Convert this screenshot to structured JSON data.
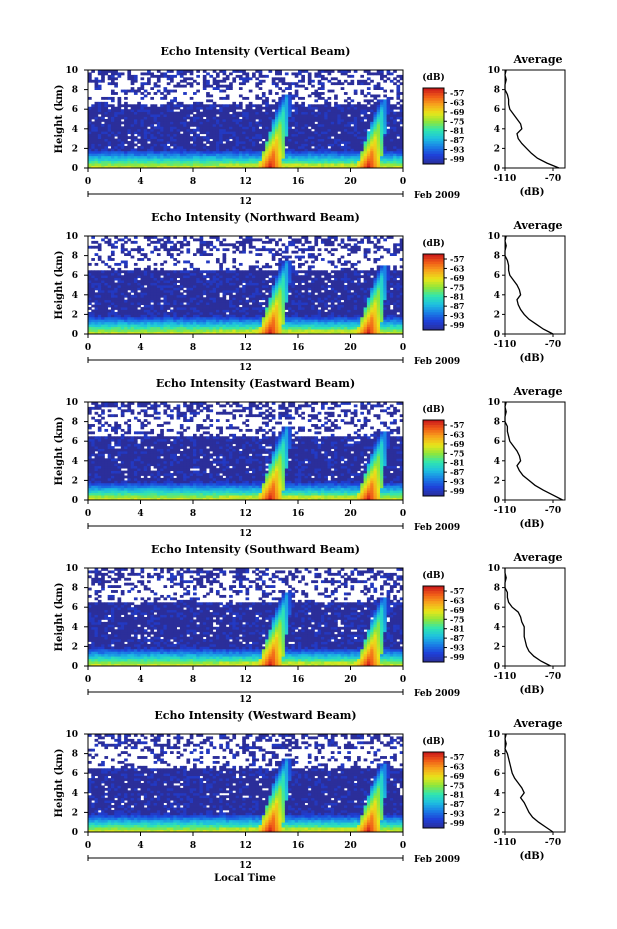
{
  "figure": {
    "month_label": "Feb 2009",
    "xlabel": "Local Time",
    "ylabel": "Height (km)",
    "colorbar_label": "(dB)",
    "avg_title": "Average",
    "avg_xlabel": "(dB)"
  },
  "colors": {
    "background_missing": "#ffffff",
    "low_echo": "#2b2e9a",
    "colormap": [
      "#2b2e9a",
      "#1e3fd8",
      "#1a7de6",
      "#1ec0e0",
      "#30e6b0",
      "#8ee63c",
      "#e8e61a",
      "#f7a61c",
      "#f05a18",
      "#c8141a"
    ]
  },
  "chart_data": [
    {
      "type": "heatmap",
      "title": "Echo Intensity (Vertical Beam)",
      "xlabel": "",
      "ylabel": "Height (km)",
      "x_range_hours": [
        0,
        24
      ],
      "x_ticks": [
        "0",
        "4",
        "8",
        "12",
        "16",
        "20",
        "0"
      ],
      "ylim_km": [
        0,
        10
      ],
      "y_ticks": [
        "0",
        "2",
        "4",
        "6",
        "8",
        "10"
      ],
      "day_marker": "12",
      "colorbar_ticks": [
        "-57",
        "-63",
        "-69",
        "-75",
        "-81",
        "-87",
        "-93",
        "-99"
      ],
      "events": [
        {
          "time_h": 15.2,
          "peak_km": 7.5,
          "strength": "strong"
        },
        {
          "time_h": 22.6,
          "peak_km": 7.0,
          "strength": "strong"
        }
      ],
      "average_profile": {
        "xlim_db": [
          -110,
          -60
        ],
        "x_ticks": [
          "-110",
          "-70"
        ],
        "height_km": [
          0,
          0.5,
          1,
          1.5,
          2,
          2.5,
          3,
          3.5,
          4,
          4.5,
          5,
          5.5,
          6,
          6.5,
          7,
          7.5,
          8,
          8.5,
          9,
          9.5,
          10
        ],
        "db": [
          -65,
          -75,
          -83,
          -88,
          -92,
          -96,
          -99,
          -100,
          -96,
          -97,
          -100,
          -103,
          -106,
          -107,
          -107,
          -108,
          -110,
          -110,
          -109,
          -110,
          -109
        ]
      }
    },
    {
      "type": "heatmap",
      "title": "Echo Intensity (Northward Beam)",
      "xlabel": "",
      "ylabel": "Height (km)",
      "x_range_hours": [
        0,
        24
      ],
      "x_ticks": [
        "0",
        "4",
        "8",
        "12",
        "16",
        "20",
        "0"
      ],
      "ylim_km": [
        0,
        10
      ],
      "y_ticks": [
        "0",
        "2",
        "4",
        "6",
        "8",
        "10"
      ],
      "day_marker": "12",
      "colorbar_ticks": [
        "-57",
        "-63",
        "-69",
        "-75",
        "-81",
        "-87",
        "-93",
        "-99"
      ],
      "events": [
        {
          "time_h": 15.2,
          "peak_km": 7.5,
          "strength": "strong"
        },
        {
          "time_h": 22.6,
          "peak_km": 7.0,
          "strength": "strong"
        }
      ],
      "average_profile": {
        "xlim_db": [
          -110,
          -60
        ],
        "x_ticks": [
          "-110",
          "-70"
        ],
        "height_km": [
          0,
          0.5,
          1,
          1.5,
          2,
          2.5,
          3,
          3.5,
          4,
          4.5,
          5,
          5.5,
          6,
          6.5,
          7,
          7.5,
          8,
          8.5,
          9,
          9.5,
          10
        ],
        "db": [
          -70,
          -78,
          -84,
          -90,
          -94,
          -97,
          -99,
          -100,
          -97,
          -98,
          -100,
          -103,
          -106,
          -107,
          -107,
          -108,
          -110,
          -110,
          -109,
          -110,
          -109
        ]
      }
    },
    {
      "type": "heatmap",
      "title": "Echo Intensity (Eastward Beam)",
      "xlabel": "",
      "ylabel": "Height (km)",
      "x_range_hours": [
        0,
        24
      ],
      "x_ticks": [
        "0",
        "4",
        "8",
        "12",
        "16",
        "20",
        "0"
      ],
      "ylim_km": [
        0,
        10
      ],
      "y_ticks": [
        "0",
        "2",
        "4",
        "6",
        "8",
        "10"
      ],
      "day_marker": "12",
      "colorbar_ticks": [
        "-57",
        "-63",
        "-69",
        "-75",
        "-81",
        "-87",
        "-93",
        "-99"
      ],
      "events": [
        {
          "time_h": 15.2,
          "peak_km": 7.5,
          "strength": "strong"
        },
        {
          "time_h": 22.6,
          "peak_km": 7.0,
          "strength": "strong"
        }
      ],
      "average_profile": {
        "xlim_db": [
          -110,
          -60
        ],
        "x_ticks": [
          "-110",
          "-70"
        ],
        "height_km": [
          0,
          0.5,
          1,
          1.5,
          2,
          2.5,
          3,
          3.5,
          4,
          4.5,
          5,
          5.5,
          6,
          6.5,
          7,
          7.5,
          8,
          8.5,
          9,
          9.5,
          10
        ],
        "db": [
          -62,
          -70,
          -78,
          -85,
          -90,
          -95,
          -98,
          -100,
          -97,
          -98,
          -100,
          -103,
          -106,
          -107,
          -108,
          -108,
          -110,
          -110,
          -109,
          -110,
          -109
        ]
      }
    },
    {
      "type": "heatmap",
      "title": "Echo Intensity (Southward Beam)",
      "xlabel": "",
      "ylabel": "Height (km)",
      "x_range_hours": [
        0,
        24
      ],
      "x_ticks": [
        "0",
        "4",
        "8",
        "12",
        "16",
        "20",
        "0"
      ],
      "ylim_km": [
        0,
        10
      ],
      "y_ticks": [
        "0",
        "2",
        "4",
        "6",
        "8",
        "10"
      ],
      "day_marker": "12",
      "colorbar_ticks": [
        "-57",
        "-63",
        "-69",
        "-75",
        "-81",
        "-87",
        "-93",
        "-99"
      ],
      "events": [
        {
          "time_h": 15.2,
          "peak_km": 7.5,
          "strength": "strong"
        },
        {
          "time_h": 22.6,
          "peak_km": 7.0,
          "strength": "strong"
        }
      ],
      "average_profile": {
        "xlim_db": [
          -110,
          -60
        ],
        "x_ticks": [
          "-110",
          "-70"
        ],
        "height_km": [
          0,
          0.5,
          1,
          1.5,
          2,
          2.5,
          3,
          3.5,
          4,
          4.5,
          5,
          5.5,
          6,
          6.5,
          7,
          7.5,
          8,
          8.5,
          9,
          9.5,
          10
        ],
        "db": [
          -72,
          -80,
          -86,
          -90,
          -92,
          -93,
          -94,
          -94,
          -94,
          -96,
          -97,
          -99,
          -104,
          -107,
          -108,
          -108,
          -110,
          -110,
          -109,
          -110,
          -110
        ]
      }
    },
    {
      "type": "heatmap",
      "title": "Echo Intensity (Westward Beam)",
      "xlabel": "Local Time",
      "ylabel": "Height (km)",
      "x_range_hours": [
        0,
        24
      ],
      "x_ticks": [
        "0",
        "4",
        "8",
        "12",
        "16",
        "20",
        "0"
      ],
      "ylim_km": [
        0,
        10
      ],
      "y_ticks": [
        "0",
        "2",
        "4",
        "6",
        "8",
        "10"
      ],
      "day_marker": "12",
      "colorbar_ticks": [
        "-57",
        "-63",
        "-69",
        "-75",
        "-81",
        "-87",
        "-93",
        "-99"
      ],
      "events": [
        {
          "time_h": 15.2,
          "peak_km": 7.5,
          "strength": "strong"
        },
        {
          "time_h": 22.6,
          "peak_km": 7.0,
          "strength": "strong"
        }
      ],
      "average_profile": {
        "xlim_db": [
          -110,
          -60
        ],
        "x_ticks": [
          "-110",
          "-70"
        ],
        "height_km": [
          0,
          0.5,
          1,
          1.5,
          2,
          2.5,
          3,
          3.5,
          4,
          4.5,
          5,
          5.5,
          6,
          6.5,
          7,
          7.5,
          8,
          8.5,
          9,
          9.5,
          10
        ],
        "db": [
          -70,
          -76,
          -82,
          -87,
          -90,
          -92,
          -94,
          -97,
          -94,
          -96,
          -99,
          -102,
          -104,
          -105,
          -106,
          -107,
          -108,
          -110,
          -109,
          -110,
          -109
        ]
      }
    }
  ]
}
